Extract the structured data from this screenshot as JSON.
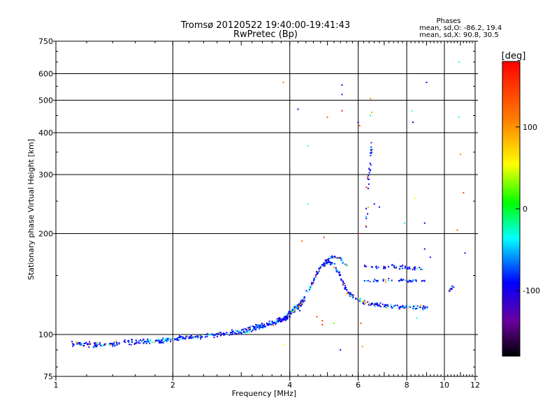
{
  "chart_data": {
    "type": "scatter",
    "title": "Tromsø 20120522 19:40:00-19:41:43",
    "subtitle": "RwPretec (Bp)",
    "xlabel": "Frequency [MHz]",
    "ylabel": "Stationary phase Virtual Height [km]",
    "xscale": "log",
    "yscale": "log",
    "xlim": [
      1,
      12
    ],
    "ylim": [
      75,
      750
    ],
    "xticks": [
      1,
      2,
      4,
      6,
      8,
      10,
      12
    ],
    "yticks": [
      75,
      100,
      200,
      300,
      400,
      500,
      600,
      750
    ],
    "grid": true,
    "stats": {
      "title": "Phases",
      "line1": "mean, sd,O: -86.2, 19.4",
      "line2": "mean, sd,X:  90.8, 30.5"
    },
    "colorbar": {
      "label": "[deg]",
      "range": [
        -180,
        180
      ],
      "ticks": [
        100,
        0,
        -100
      ],
      "tick_labels": [
        "100",
        "0",
        "-100"
      ]
    },
    "traces": [
      {
        "x": [
          1.1,
          1.3,
          1.6,
          1.9,
          2.2,
          2.6,
          3.0,
          3.3,
          3.6,
          3.9,
          4.1,
          4.3
        ],
        "y": [
          94,
          93,
          95,
          96,
          98,
          100,
          102,
          105,
          108,
          112,
          118,
          125
        ],
        "jitter": 0.025,
        "n": 520
      },
      {
        "x": [
          4.2,
          4.4,
          4.6,
          4.8,
          5.0,
          5.2,
          5.4,
          5.6,
          5.9,
          6.3,
          6.8,
          7.5,
          8.2,
          9.0
        ],
        "y": [
          118,
          130,
          145,
          158,
          165,
          162,
          148,
          135,
          128,
          124,
          122,
          121,
          121,
          120
        ],
        "jitter": 0.02,
        "n": 260
      },
      {
        "x": [
          4.85,
          5.0,
          5.2,
          5.4,
          5.6
        ],
        "y": [
          160,
          168,
          170,
          168,
          160
        ],
        "jitter": 0.015,
        "n": 40
      },
      {
        "x": [
          6.2,
          6.8,
          7.4,
          8.0,
          8.8
        ],
        "y": [
          160,
          158,
          160,
          158,
          157
        ],
        "jitter": 0.02,
        "n": 50
      },
      {
        "x": [
          6.2,
          6.8,
          7.4,
          8.2,
          9.0
        ],
        "y": [
          146,
          144,
          146,
          145,
          144
        ],
        "jitter": 0.02,
        "n": 40
      },
      {
        "x": [
          6.3,
          6.4,
          6.5
        ],
        "y": [
          210,
          300,
          380
        ],
        "jitter": 0.03,
        "n": 30
      },
      {
        "x": [
          10.3,
          10.6
        ],
        "y": [
          135,
          140
        ],
        "jitter": 0.01,
        "n": 10
      }
    ],
    "outliers": [
      {
        "x": 3.85,
        "y": 565,
        "phase": 120
      },
      {
        "x": 5.45,
        "y": 555,
        "phase": -100
      },
      {
        "x": 5.45,
        "y": 520,
        "phase": -90
      },
      {
        "x": 5.45,
        "y": 465,
        "phase": 170
      },
      {
        "x": 4.2,
        "y": 470,
        "phase": -100
      },
      {
        "x": 4.45,
        "y": 365,
        "phase": -40
      },
      {
        "x": 5.0,
        "y": 445,
        "phase": 130
      },
      {
        "x": 6.0,
        "y": 430,
        "phase": -100
      },
      {
        "x": 6.05,
        "y": 420,
        "phase": 150
      },
      {
        "x": 6.45,
        "y": 505,
        "phase": 120
      },
      {
        "x": 6.45,
        "y": 450,
        "phase": -30
      },
      {
        "x": 6.5,
        "y": 460,
        "phase": 100
      },
      {
        "x": 8.25,
        "y": 465,
        "phase": -40
      },
      {
        "x": 8.3,
        "y": 430,
        "phase": -100
      },
      {
        "x": 9.0,
        "y": 565,
        "phase": -100
      },
      {
        "x": 10.9,
        "y": 650,
        "phase": -40
      },
      {
        "x": 10.9,
        "y": 445,
        "phase": -40
      },
      {
        "x": 11.0,
        "y": 345,
        "phase": 110
      },
      {
        "x": 11.2,
        "y": 265,
        "phase": 150
      },
      {
        "x": 11.3,
        "y": 175,
        "phase": -110
      },
      {
        "x": 10.8,
        "y": 205,
        "phase": 140
      },
      {
        "x": 6.35,
        "y": 295,
        "phase": 170
      },
      {
        "x": 6.3,
        "y": 275,
        "phase": 160
      },
      {
        "x": 6.6,
        "y": 245,
        "phase": -100
      },
      {
        "x": 6.8,
        "y": 240,
        "phase": -100
      },
      {
        "x": 8.4,
        "y": 255,
        "phase": 60
      },
      {
        "x": 8.9,
        "y": 215,
        "phase": -100
      },
      {
        "x": 7.9,
        "y": 215,
        "phase": -40
      },
      {
        "x": 4.45,
        "y": 245,
        "phase": -40
      },
      {
        "x": 4.9,
        "y": 195,
        "phase": 160
      },
      {
        "x": 4.3,
        "y": 190,
        "phase": 130
      },
      {
        "x": 6.0,
        "y": 200,
        "phase": 170
      },
      {
        "x": 8.9,
        "y": 180,
        "phase": -100
      },
      {
        "x": 9.2,
        "y": 170,
        "phase": -100
      },
      {
        "x": 5.4,
        "y": 90,
        "phase": -100
      },
      {
        "x": 6.15,
        "y": 92,
        "phase": 110
      },
      {
        "x": 3.85,
        "y": 93,
        "phase": 60
      },
      {
        "x": 4.85,
        "y": 110,
        "phase": 150
      },
      {
        "x": 4.85,
        "y": 107,
        "phase": 160
      },
      {
        "x": 6.1,
        "y": 108,
        "phase": 140
      },
      {
        "x": 8.5,
        "y": 112,
        "phase": -40
      },
      {
        "x": 4.7,
        "y": 113,
        "phase": 150
      },
      {
        "x": 5.2,
        "y": 108,
        "phase": 30
      }
    ]
  }
}
